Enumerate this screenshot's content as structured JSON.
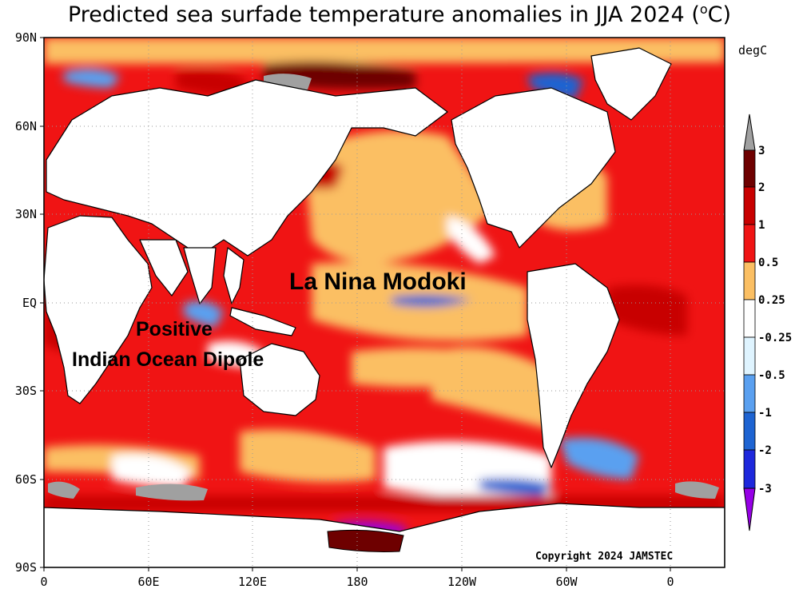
{
  "title": {
    "text": "Predicted sea surfade temperature anomalies in JJA 2024 (",
    "unit_sup": "o",
    "unit_tail": "C)"
  },
  "axes": {
    "lat_labels": [
      "90N",
      "60N",
      "30N",
      "EQ",
      "30S",
      "60S",
      "90S"
    ],
    "lon_labels": [
      "0",
      "60E",
      "120E",
      "180",
      "120W",
      "60W",
      "0"
    ]
  },
  "colorbar": {
    "unit_label": "degC",
    "levels": [
      "3",
      "2",
      "1",
      "0.5",
      "0.25",
      "-0.25",
      "-0.5",
      "-1",
      "-2",
      "-3"
    ],
    "colors": {
      "above_3": "#a0a0a0",
      "2_to_3": "#6e0000",
      "1_to_2": "#c80000",
      "0.5_to_1": "#f01414",
      "0.25_to_0.5": "#fbbf63",
      "neutral": "#ffffff",
      "-0.5_to_-0.25": "#dff4ff",
      "-1_to_-0.5": "#5aa0f0",
      "-2_to_-1": "#1e64d2",
      "-3_to_-2": "#1e28dc",
      "below_-3": "#9600e6"
    }
  },
  "annotations": {
    "la_nina": "La Nina Modoki",
    "iod_line1": "Positive",
    "iod_line2": "Indian Ocean Dipole"
  },
  "copyright": "Copyright 2024 JAMSTEC"
}
